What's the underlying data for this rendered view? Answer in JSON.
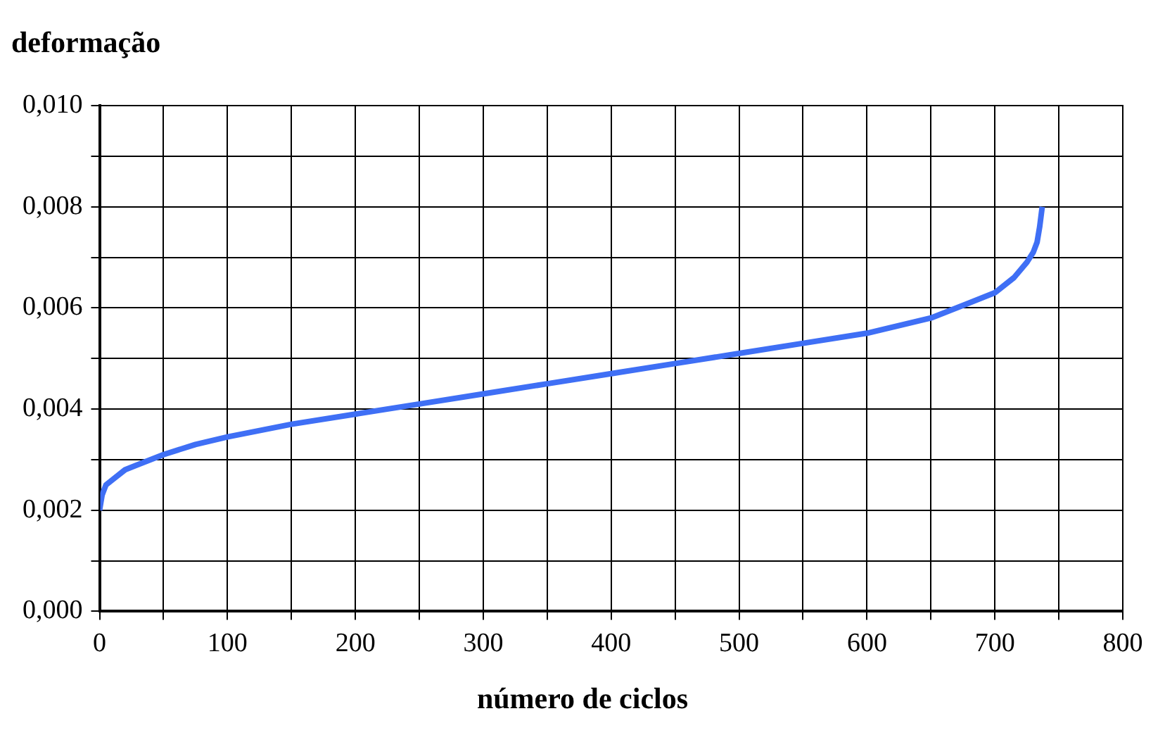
{
  "chart_data": {
    "type": "line",
    "xlabel": "número de ciclos",
    "ylabel": "deformação",
    "series": [
      {
        "color": "#3f6ff5",
        "x": [
          0,
          2,
          5,
          10,
          20,
          30,
          50,
          75,
          100,
          150,
          200,
          250,
          300,
          350,
          400,
          450,
          500,
          550,
          600,
          650,
          680,
          700,
          715,
          725,
          730,
          733,
          735,
          737
        ],
        "values": [
          0.002,
          0.0023,
          0.0025,
          0.0026,
          0.0028,
          0.0029,
          0.0031,
          0.0033,
          0.00345,
          0.0037,
          0.0039,
          0.0041,
          0.0043,
          0.0045,
          0.0047,
          0.0049,
          0.0051,
          0.0053,
          0.0055,
          0.0058,
          0.0061,
          0.0063,
          0.0066,
          0.0069,
          0.0071,
          0.0073,
          0.0076,
          0.008
        ]
      }
    ],
    "xlim": [
      0,
      800
    ],
    "xticks": [
      0,
      {
        "value": 50,
        "label": null
      },
      100,
      {
        "value": 150,
        "label": null
      },
      200,
      {
        "value": 250,
        "label": null
      },
      300,
      {
        "value": 350,
        "label": null
      },
      400,
      {
        "value": 450,
        "label": null
      },
      500,
      {
        "value": 550,
        "label": null
      },
      600,
      {
        "value": 650,
        "label": null
      },
      700,
      {
        "value": 750,
        "label": null
      },
      800
    ],
    "ylim": [
      0,
      0.01
    ],
    "yticks": [
      {
        "value": 0,
        "label": "0,000"
      },
      {
        "value": 0.001,
        "label": null
      },
      {
        "value": 0.002,
        "label": "0,002"
      },
      {
        "value": 0.003,
        "label": null
      },
      {
        "value": 0.004,
        "label": "0,004"
      },
      {
        "value": 0.005,
        "label": null
      },
      {
        "value": 0.006,
        "label": "0,006"
      },
      {
        "value": 0.007,
        "label": null
      },
      {
        "value": 0.008,
        "label": "0,008"
      },
      {
        "value": 0.009,
        "label": null
      },
      {
        "value": 0.01,
        "label": "0,010"
      }
    ],
    "grid": true,
    "legend": false,
    "marker": "none",
    "line_style": "solid"
  }
}
